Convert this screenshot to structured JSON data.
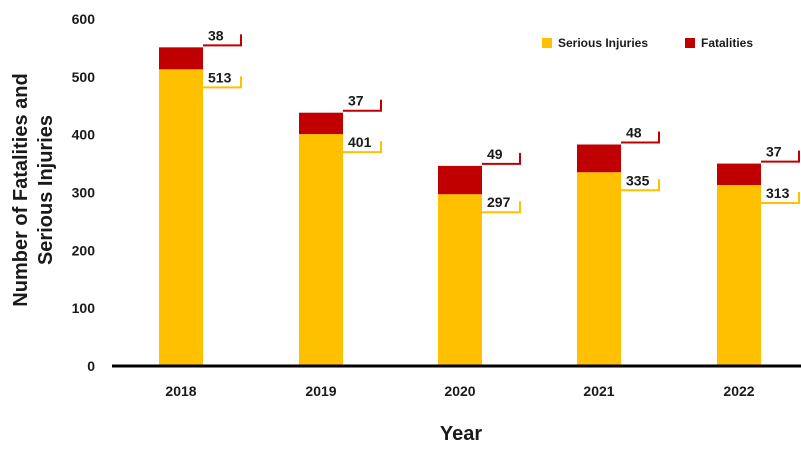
{
  "chart_data": {
    "type": "bar",
    "stacked": true,
    "categories": [
      "2018",
      "2019",
      "2020",
      "2021",
      "2022"
    ],
    "series": [
      {
        "name": "Serious Injuries",
        "color": "#FFC000",
        "values": [
          513,
          401,
          297,
          335,
          313
        ]
      },
      {
        "name": "Fatalities",
        "color": "#C00000",
        "values": [
          38,
          37,
          49,
          48,
          37
        ]
      }
    ],
    "title": "",
    "xlabel": "Year",
    "ylabel": "Number of Fatalities and Serious Injuries",
    "ylabel_lines": [
      "Number of Fatalities and",
      "Serious Injuries"
    ],
    "ylim": [
      0,
      600
    ],
    "yticks": [
      0,
      100,
      200,
      300,
      400,
      500,
      600
    ],
    "grid": false,
    "legend_position": "top-right"
  }
}
